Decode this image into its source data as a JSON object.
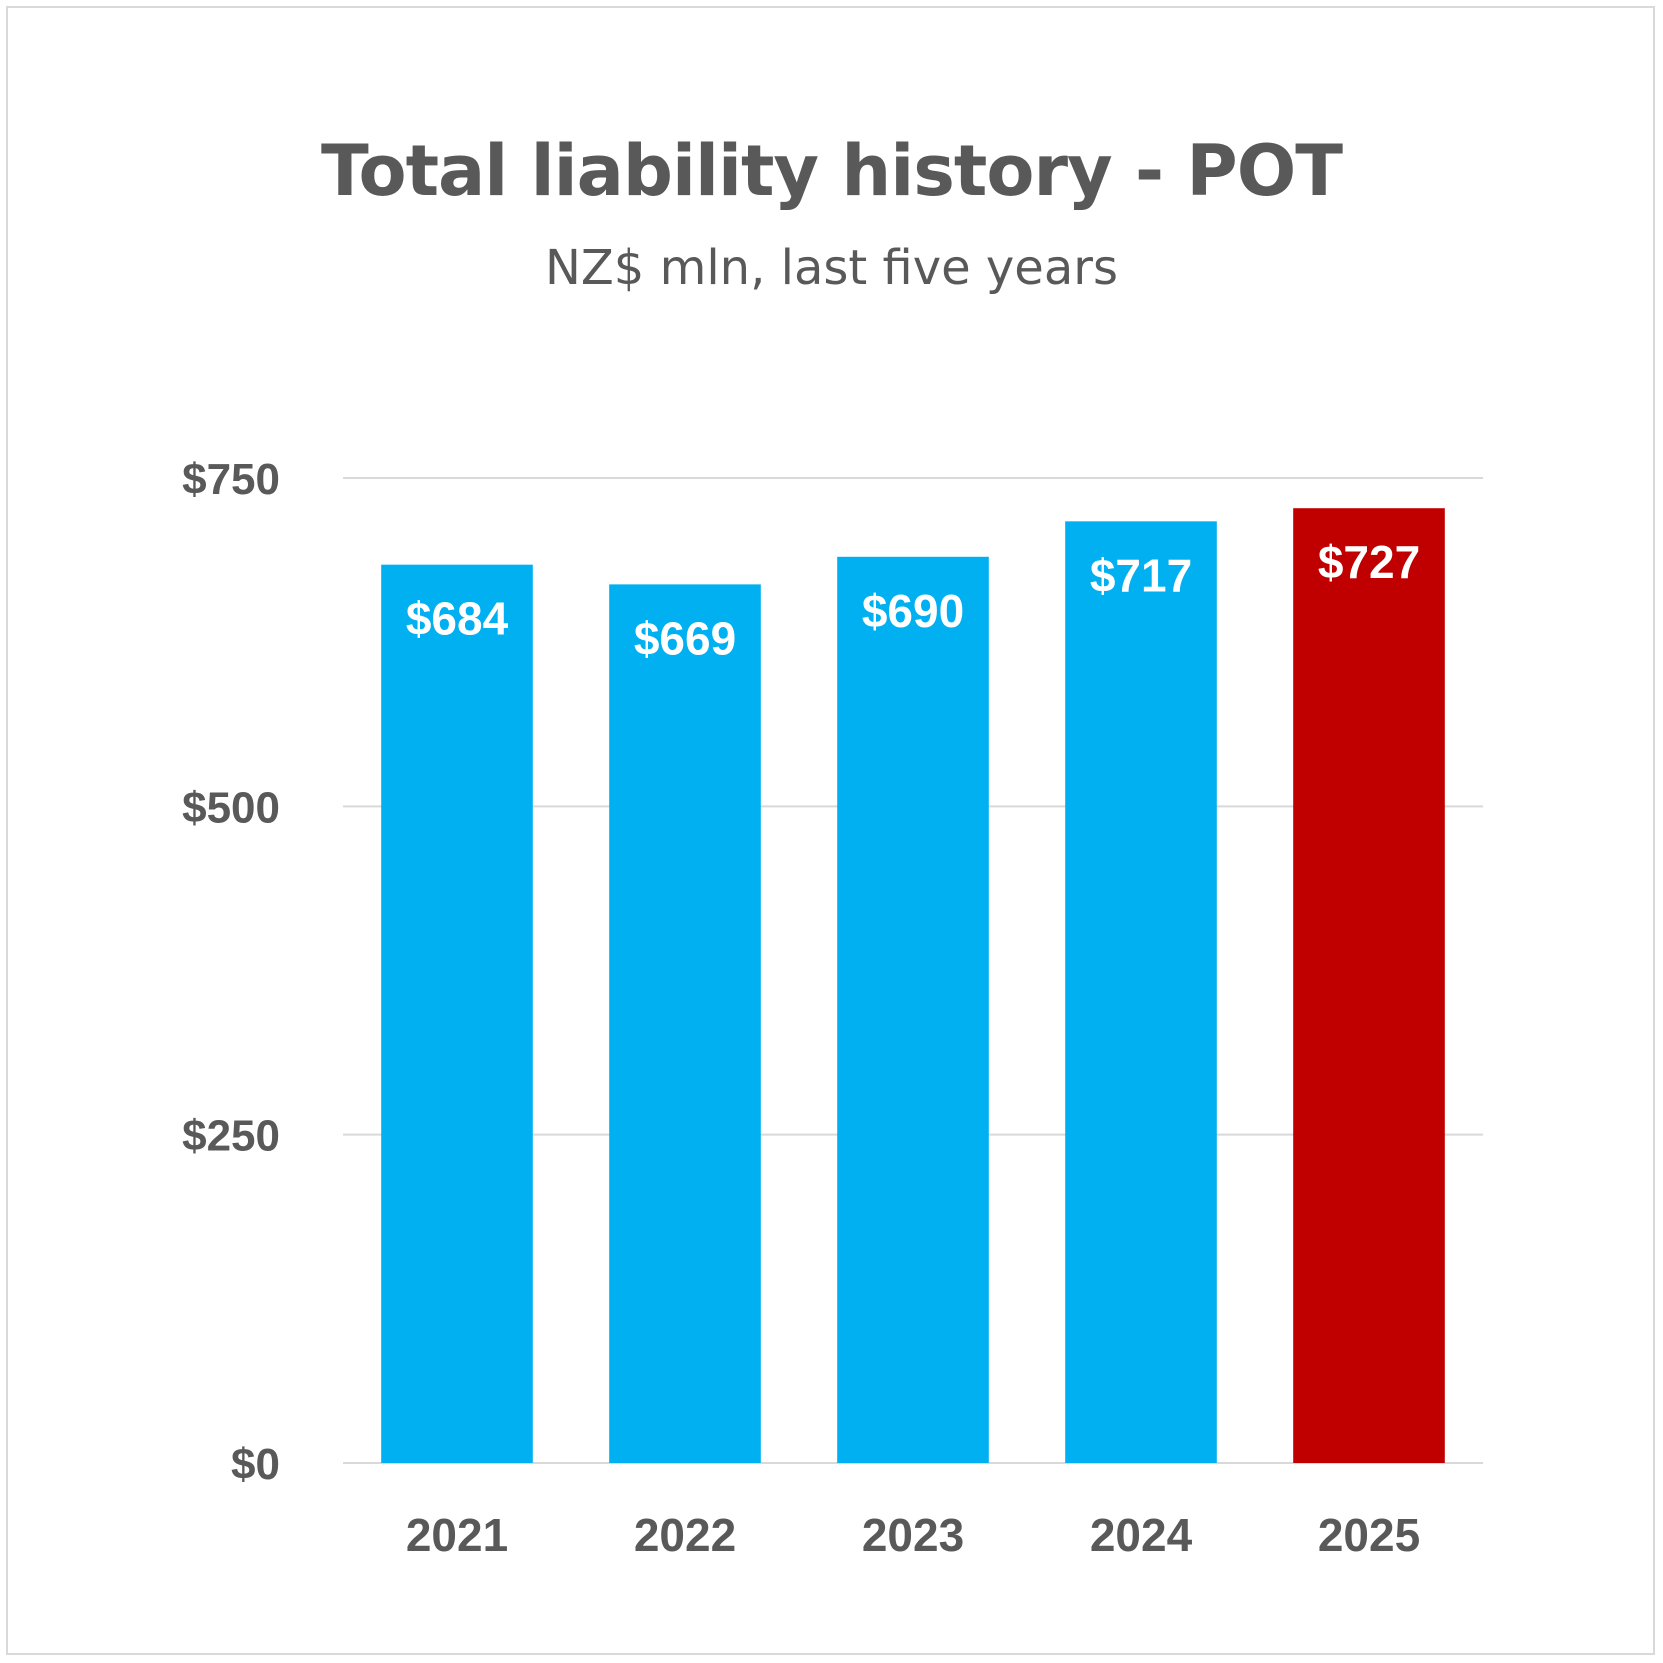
{
  "colors": {
    "bar_default": "#00B0F0",
    "bar_highlight": "#C00000",
    "gridline": "#D9D9D9",
    "text": "#595959",
    "bar_label": "#FFFFFF"
  },
  "chart_data": {
    "type": "bar",
    "title": "Total liability history - POT",
    "subtitle": "NZ$ mln, last five years",
    "categories": [
      "2021",
      "2022",
      "2023",
      "2024",
      "2025"
    ],
    "values": [
      684,
      669,
      690,
      717,
      727
    ],
    "data_labels": [
      "$684",
      "$669",
      "$690",
      "$717",
      "$727"
    ],
    "highlight_index": 4,
    "ylim": [
      0,
      750
    ],
    "yticks": [
      0,
      250,
      500,
      750
    ],
    "ytick_labels": [
      "$0",
      "$250",
      "$500",
      "$750"
    ],
    "xlabel": "",
    "ylabel": "",
    "grid": true,
    "legend": "none"
  }
}
